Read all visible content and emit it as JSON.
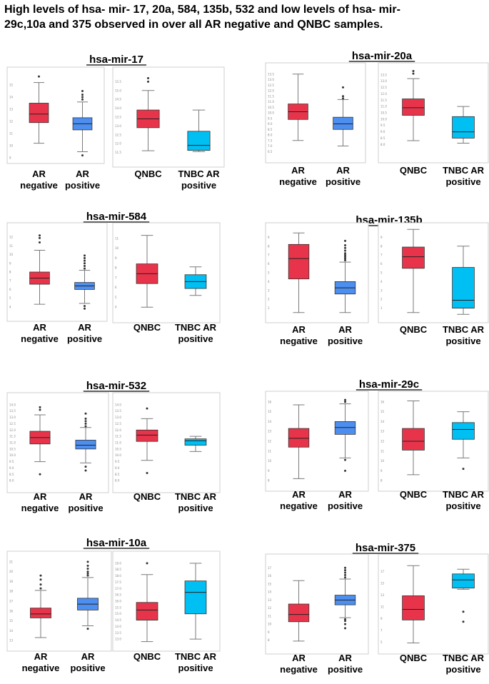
{
  "headline": {
    "line1": "High levels of hsa- mir- 17, 20a, 584, 135b, 532 and low levels of hsa- mir-",
    "line2": "29c,10a and 375 observed in over all AR negative and QNBC samples."
  },
  "colors": {
    "red": "#e8344a",
    "blue": "#4d8ff0",
    "cyan": "#00bff3",
    "frame": "#cfcfcf"
  },
  "chart_data": [
    {
      "type": "box",
      "title": "hsa-mir-17",
      "left": {
        "ylim": [
          9,
          16
        ],
        "ticks": [
          "9",
          "10",
          "11",
          "12",
          "13",
          "14",
          "15"
        ],
        "groups": [
          {
            "label": [
              "AR",
              "negative"
            ],
            "color": "red",
            "stats": [
              10.2,
              11.9,
              12.6,
              13.5,
              15.2
            ],
            "outliers": [
              15.7
            ]
          },
          {
            "label": [
              "AR",
              "positive"
            ],
            "color": "blue",
            "stats": [
              9.5,
              11.3,
              11.8,
              12.3,
              13.6
            ],
            "outliers": [
              13.8,
              14.0,
              14.2,
              14.5,
              9.2
            ]
          }
        ]
      },
      "right": {
        "ylim": [
          11,
          16
        ],
        "ticks": [
          "11.5",
          "12.0",
          "12.5",
          "13.0",
          "13.5",
          "14.0",
          "14.5",
          "15.0",
          "15.5"
        ],
        "groups": [
          {
            "label": [
              "QNBC"
            ],
            "color": "red",
            "stats": [
              11.6,
              12.9,
              13.4,
              13.9,
              15.0
            ],
            "outliers": [
              15.5,
              15.7
            ]
          },
          {
            "label": [
              "TNBC AR",
              "positive"
            ],
            "color": "cyan",
            "stats": [
              11.55,
              11.62,
              11.9,
              12.7,
              13.9
            ],
            "outliers": []
          }
        ]
      }
    },
    {
      "type": "box",
      "title": "hsa-mir-20a",
      "left": {
        "ylim": [
          6,
          14
        ],
        "ticks": [
          "6.5",
          "7.0",
          "7.5",
          "8.0",
          "8.5",
          "9.0",
          "9.5",
          "10.0",
          "10.5",
          "11.0",
          "11.5",
          "12.0",
          "12.5",
          "13.0",
          "13.5"
        ],
        "groups": [
          {
            "label": [
              "AR",
              "negative"
            ],
            "color": "red",
            "stats": [
              7.5,
              9.4,
              10.1,
              10.8,
              13.5
            ],
            "outliers": []
          },
          {
            "label": [
              "AR",
              "positive"
            ],
            "color": "blue",
            "stats": [
              7.0,
              8.5,
              9.0,
              9.6,
              11.2
            ],
            "outliers": [
              11.3,
              11.5,
              12.3
            ]
          }
        ]
      },
      "right": {
        "ylim": [
          7,
          14
        ],
        "ticks": [
          "8.0",
          "8.5",
          "9.0",
          "9.5",
          "10.0",
          "10.5",
          "11.0",
          "11.5",
          "12.0",
          "12.5",
          "13.0",
          "13.5"
        ],
        "groups": [
          {
            "label": [
              "QNBC"
            ],
            "color": "red",
            "stats": [
              8.3,
              10.3,
              10.9,
              11.6,
              13.2
            ],
            "outliers": [
              13.6,
              13.8
            ]
          },
          {
            "label": [
              "TNBC AR",
              "positive"
            ],
            "color": "cyan",
            "stats": [
              8.1,
              8.5,
              9.0,
              10.2,
              11.0
            ],
            "outliers": []
          }
        ]
      }
    },
    {
      "type": "box",
      "title": "hsa-mir-584",
      "left": {
        "ylim": [
          3,
          13
        ],
        "ticks": [
          "4",
          "5",
          "6",
          "7",
          "8",
          "9",
          "10",
          "11",
          "12"
        ],
        "groups": [
          {
            "label": [
              "AR",
              "negative"
            ],
            "color": "red",
            "stats": [
              4.3,
              6.6,
              7.3,
              8.0,
              10.5
            ],
            "outliers": [
              11.4,
              11.9,
              12.2
            ]
          },
          {
            "label": [
              "AR",
              "positive"
            ],
            "color": "blue",
            "stats": [
              4.4,
              6.0,
              6.4,
              6.8,
              8.2
            ],
            "outliers": [
              8.4,
              8.7,
              9.0,
              9.3,
              9.6,
              9.9,
              4.1,
              3.8
            ]
          }
        ]
      },
      "right": {
        "ylim": [
          3,
          12
        ],
        "ticks": [
          "4",
          "5",
          "6",
          "7",
          "8",
          "9",
          "10",
          "11"
        ],
        "groups": [
          {
            "label": [
              "QNBC"
            ],
            "color": "red",
            "stats": [
              4.0,
              6.4,
              7.4,
              8.4,
              11.3
            ],
            "outliers": []
          },
          {
            "label": [
              "TNBC AR",
              "positive"
            ],
            "color": "cyan",
            "stats": [
              5.2,
              5.9,
              6.6,
              7.3,
              8.1
            ],
            "outliers": []
          }
        ]
      }
    },
    {
      "type": "box",
      "title": "hsa-mir-135b",
      "left": {
        "ylim": [
          0,
          10
        ],
        "ticks": [
          "1",
          "2",
          "3",
          "4",
          "5",
          "6",
          "7",
          "8",
          "9"
        ],
        "groups": [
          {
            "label": [
              "AR",
              "negative"
            ],
            "color": "red",
            "stats": [
              0.5,
              4.3,
              6.6,
              8.2,
              9.5
            ],
            "outliers": []
          },
          {
            "label": [
              "AR",
              "positive"
            ],
            "color": "blue",
            "stats": [
              0.5,
              2.6,
              3.3,
              4.0,
              6.2
            ],
            "outliers": [
              6.4,
              6.6,
              6.8,
              7.0,
              7.2,
              7.5,
              7.8,
              8.1,
              8.6
            ]
          }
        ]
      },
      "right": {
        "ylim": [
          0,
          10
        ],
        "ticks": [
          "1",
          "2",
          "3",
          "4",
          "5",
          "6",
          "7",
          "8",
          "9"
        ],
        "groups": [
          {
            "label": [
              "QNBC"
            ],
            "color": "red",
            "stats": [
              0.5,
              5.5,
              6.8,
              7.9,
              9.9
            ],
            "outliers": []
          },
          {
            "label": [
              "TNBC AR",
              "positive"
            ],
            "color": "cyan",
            "stats": [
              0.3,
              1.0,
              1.9,
              5.6,
              8.0
            ],
            "outliers": []
          }
        ]
      }
    },
    {
      "type": "box",
      "title": "hsa-mir-532",
      "left": {
        "ylim": [
          7.5,
          14.5
        ],
        "ticks": [
          "8.0",
          "8.5",
          "9.0",
          "9.5",
          "10.0",
          "10.5",
          "11.0",
          "11.5",
          "12.0",
          "12.5",
          "13.0",
          "13.5",
          "14.0"
        ],
        "groups": [
          {
            "label": [
              "AR",
              "negative"
            ],
            "color": "red",
            "stats": [
              9.5,
              10.9,
              11.4,
              11.9,
              13.2
            ],
            "outliers": [
              13.6,
              13.8,
              8.5
            ]
          },
          {
            "label": [
              "AR",
              "positive"
            ],
            "color": "blue",
            "stats": [
              9.4,
              10.5,
              10.8,
              11.2,
              12.2
            ],
            "outliers": [
              12.3,
              12.5,
              12.7,
              12.9,
              13.3,
              9.1,
              8.8
            ]
          }
        ]
      },
      "right": {
        "ylim": [
          7.5,
          14.5
        ],
        "ticks": [
          "8.0",
          "8.5",
          "9.0",
          "9.5",
          "10.0",
          "10.5",
          "11.0",
          "11.5",
          "12.0",
          "12.5",
          "13.0",
          "13.5",
          "14.0"
        ],
        "groups": [
          {
            "label": [
              "QNBC"
            ],
            "color": "red",
            "stats": [
              9.6,
              11.1,
              11.6,
              12.0,
              12.9
            ],
            "outliers": [
              13.7,
              8.6
            ]
          },
          {
            "label": [
              "TNBC AR",
              "positive"
            ],
            "color": "cyan",
            "stats": [
              10.3,
              10.8,
              11.15,
              11.3,
              11.5
            ],
            "outliers": []
          }
        ]
      }
    },
    {
      "type": "box",
      "title": "hsa-mir-29c",
      "left": {
        "ylim": [
          7.5,
          16.5
        ],
        "ticks": [
          "8",
          "9",
          "10",
          "11",
          "12",
          "13",
          "14",
          "15",
          "16"
        ],
        "groups": [
          {
            "label": [
              "AR",
              "negative"
            ],
            "color": "red",
            "stats": [
              8.2,
              11.4,
              12.3,
              13.3,
              15.7
            ],
            "outliers": []
          },
          {
            "label": [
              "AR",
              "positive"
            ],
            "color": "blue",
            "stats": [
              10.3,
              12.7,
              13.4,
              14.0,
              15.8
            ],
            "outliers": [
              16.0,
              16.2,
              10.1,
              9.0
            ]
          }
        ]
      },
      "right": {
        "ylim": [
          7.5,
          16.5
        ],
        "ticks": [
          "8",
          "9",
          "10",
          "11",
          "12",
          "13",
          "14",
          "15",
          "16"
        ],
        "groups": [
          {
            "label": [
              "QNBC"
            ],
            "color": "red",
            "stats": [
              8.6,
              11.1,
              12.0,
              13.3,
              16.1
            ],
            "outliers": []
          },
          {
            "label": [
              "TNBC AR",
              "positive"
            ],
            "color": "cyan",
            "stats": [
              10.3,
              12.2,
              13.2,
              13.9,
              15.0
            ],
            "outliers": [
              9.2
            ]
          }
        ]
      }
    },
    {
      "type": "box",
      "title": "hsa-mir-10a",
      "left": {
        "ylim": [
          12.5,
          21.5
        ],
        "ticks": [
          "13",
          "14",
          "15",
          "16",
          "17",
          "18",
          "19",
          "20",
          "21"
        ],
        "groups": [
          {
            "label": [
              "AR",
              "negative"
            ],
            "color": "red",
            "stats": [
              13.3,
              15.3,
              15.7,
              16.3,
              18.1
            ],
            "outliers": [
              18.3,
              18.7,
              19.2,
              19.6
            ]
          },
          {
            "label": [
              "AR",
              "positive"
            ],
            "color": "blue",
            "stats": [
              14.5,
              16.1,
              16.7,
              17.3,
              19.4
            ],
            "outliers": [
              19.6,
              19.8,
              20.0,
              20.3,
              20.6,
              21.0,
              14.2
            ]
          }
        ]
      },
      "right": {
        "ylim": [
          12.5,
          19.5
        ],
        "ticks": [
          "13.0",
          "13.5",
          "14.0",
          "14.5",
          "15.0",
          "15.5",
          "16.0",
          "16.5",
          "17.0",
          "17.5",
          "18.0",
          "18.5",
          "19.0"
        ],
        "groups": [
          {
            "label": [
              "QNBC"
            ],
            "color": "red",
            "stats": [
              12.8,
              14.5,
              15.3,
              15.9,
              18.1
            ],
            "outliers": [
              19.0
            ]
          },
          {
            "label": [
              "TNBC AR",
              "positive"
            ],
            "color": "cyan",
            "stats": [
              13.0,
              15.0,
              16.7,
              17.6,
              19.0
            ],
            "outliers": []
          }
        ]
      }
    },
    {
      "type": "box",
      "title": "hsa-mir-375",
      "left": {
        "ylim": [
          7,
          18
        ],
        "ticks": [
          "8",
          "9",
          "10",
          "11",
          "12",
          "13",
          "14",
          "15",
          "16",
          "17"
        ],
        "groups": [
          {
            "label": [
              "AR",
              "negative"
            ],
            "color": "red",
            "stats": [
              7.9,
              10.3,
              11.2,
              12.5,
              15.4
            ],
            "outliers": []
          },
          {
            "label": [
              "AR",
              "positive"
            ],
            "color": "blue",
            "stats": [
              10.8,
              12.4,
              13.0,
              13.6,
              15.6
            ],
            "outliers": [
              15.8,
              16.1,
              16.4,
              16.7,
              17.0,
              10.6,
              10.4,
              10.0,
              9.5
            ]
          }
        ]
      },
      "right": {
        "ylim": [
          4,
          19
        ],
        "ticks": [
          "5",
          "7",
          "9",
          "11",
          "13",
          "15",
          "17"
        ],
        "groups": [
          {
            "label": [
              "QNBC"
            ],
            "color": "red",
            "stats": [
              4.9,
              8.8,
              10.6,
              12.9,
              18.0
            ],
            "outliers": []
          },
          {
            "label": [
              "TNBC AR",
              "positive"
            ],
            "color": "cyan",
            "stats": [
              14.0,
              14.2,
              15.6,
              16.6,
              17.4
            ],
            "outliers": [
              10.2,
              8.5
            ]
          }
        ]
      }
    }
  ]
}
